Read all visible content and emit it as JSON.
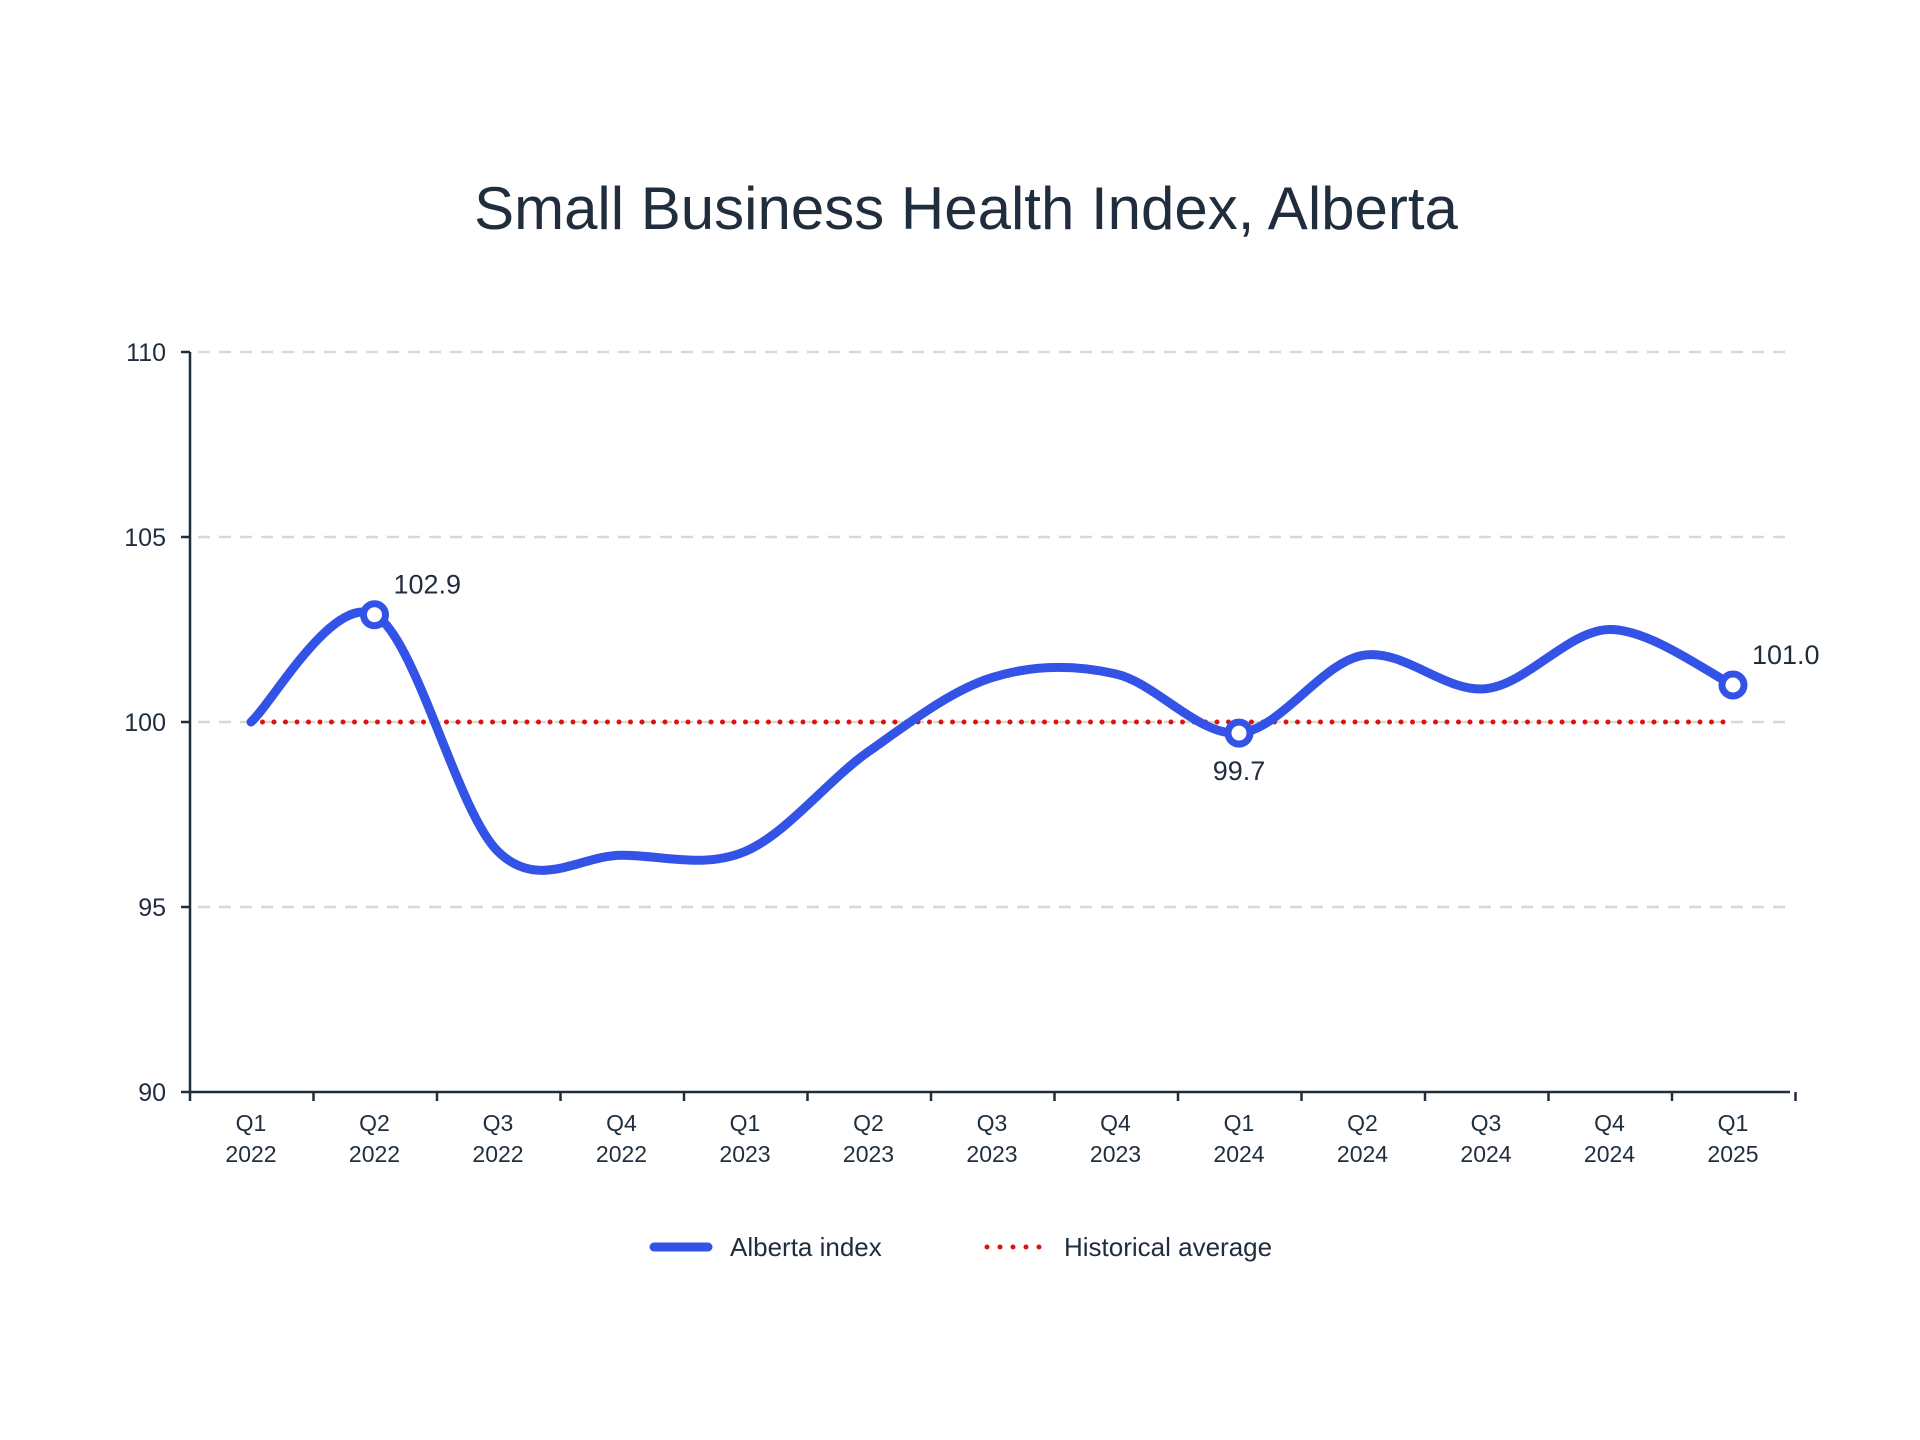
{
  "chart_data": {
    "type": "line",
    "title": "Small Business Health Index, Alberta",
    "xlabel": "",
    "ylabel": "",
    "ylim": [
      90,
      110
    ],
    "yticks": [
      "90",
      "95",
      "100",
      "105",
      "110"
    ],
    "grid": true,
    "legend_position": "bottom-center",
    "categories": [
      [
        "Q1",
        "2022"
      ],
      [
        "Q2",
        "2022"
      ],
      [
        "Q3",
        "2022"
      ],
      [
        "Q4",
        "2022"
      ],
      [
        "Q1",
        "2023"
      ],
      [
        "Q2",
        "2023"
      ],
      [
        "Q3",
        "2023"
      ],
      [
        "Q4",
        "2023"
      ],
      [
        "Q1",
        "2024"
      ],
      [
        "Q2",
        "2024"
      ],
      [
        "Q3",
        "2024"
      ],
      [
        "Q4",
        "2024"
      ],
      [
        "Q1",
        "2025"
      ]
    ],
    "series": [
      {
        "name": "Alberta index",
        "color": "#3352e6",
        "style": "solid",
        "values": [
          100.0,
          102.9,
          96.5,
          96.4,
          96.5,
          99.2,
          101.2,
          101.3,
          99.7,
          101.8,
          100.9,
          102.5,
          101.0
        ],
        "highlighted_points": [
          {
            "index": 1,
            "label": "102.9",
            "label_position": "above-right"
          },
          {
            "index": 8,
            "label": "99.7",
            "label_position": "below"
          },
          {
            "index": 12,
            "label": "101.0",
            "label_position": "above-right"
          }
        ]
      },
      {
        "name": "Historical average",
        "color": "#dd1111",
        "style": "dotted",
        "values": [
          100,
          100,
          100,
          100,
          100,
          100,
          100,
          100,
          100,
          100,
          100,
          100,
          100
        ]
      }
    ],
    "colors": {
      "axis": "#1f2d3d",
      "grid": "#d9d9cc",
      "text": "#1f2d3d"
    }
  }
}
